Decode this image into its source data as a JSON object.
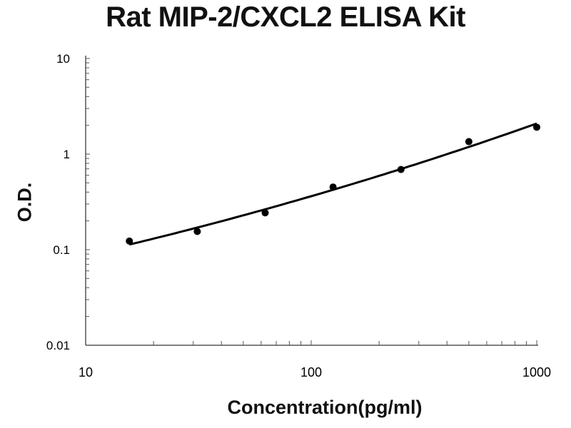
{
  "chart_data": {
    "type": "scatter",
    "title": "Rat MIP-2/CXCL2 ELISA Kit",
    "xlabel": "Concentration(pg/ml)",
    "ylabel": "O.D.",
    "xscale": "log",
    "yscale": "log",
    "xlim": [
      10,
      1000
    ],
    "ylim": [
      0.01,
      10
    ],
    "xticks": [
      "10",
      "100",
      "1000"
    ],
    "yticks": [
      "0.01",
      "0.1",
      "1",
      "10"
    ],
    "grid": false,
    "legend": "none",
    "fit_line": "smooth curve",
    "colors": {
      "points": "#000000",
      "line": "#000000",
      "axis": "#555555"
    },
    "points": [
      {
        "x": 15.625,
        "y": 0.123
      },
      {
        "x": 31.25,
        "y": 0.155
      },
      {
        "x": 62.5,
        "y": 0.243
      },
      {
        "x": 125,
        "y": 0.452
      },
      {
        "x": 250,
        "y": 0.69
      },
      {
        "x": 500,
        "y": 1.35
      },
      {
        "x": 1000,
        "y": 1.91
      }
    ]
  }
}
